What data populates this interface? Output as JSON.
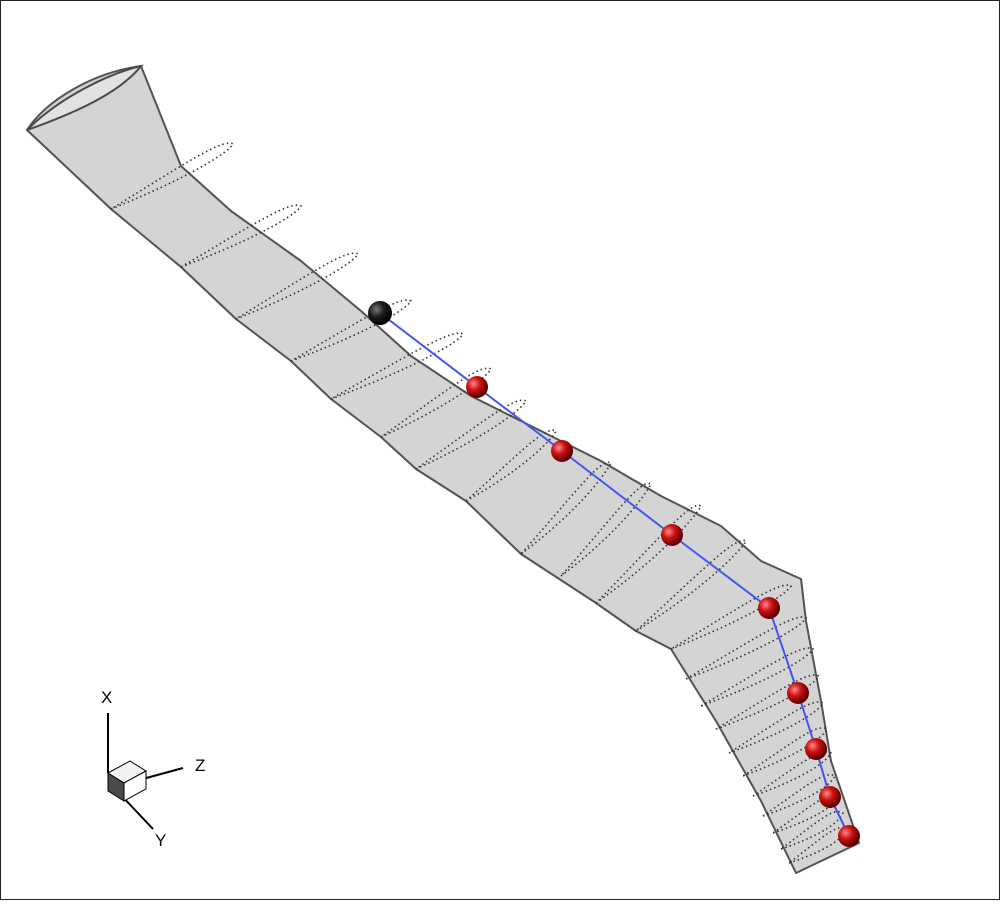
{
  "axes_triad": {
    "x_label": "X",
    "y_label": "Y",
    "z_label": "Z"
  },
  "colors": {
    "surface_fill": "#d2d2d2",
    "surface_edge": "#4a4a4a",
    "section_line": "#333333",
    "path_line": "#4455ee",
    "root_node": "#111111",
    "node": "#cc1111"
  },
  "beam_nodes": {
    "root_count": 1,
    "node_count": 8
  }
}
